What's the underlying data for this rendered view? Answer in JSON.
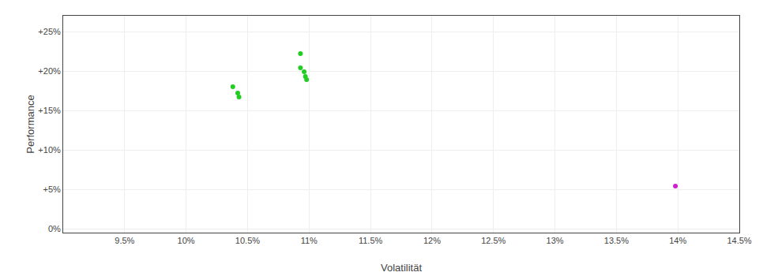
{
  "chart_data": {
    "type": "scatter",
    "xlabel": "Volatilität",
    "ylabel": "Performance",
    "xlim": [
      0.09,
      0.145
    ],
    "ylim": [
      -0.005,
      0.27
    ],
    "xticks": [
      {
        "value": 0.095,
        "label": "9.5%"
      },
      {
        "value": 0.1,
        "label": "10%"
      },
      {
        "value": 0.105,
        "label": "10.5%"
      },
      {
        "value": 0.11,
        "label": "11%"
      },
      {
        "value": 0.115,
        "label": "11.5%"
      },
      {
        "value": 0.12,
        "label": "12%"
      },
      {
        "value": 0.125,
        "label": "12.5%"
      },
      {
        "value": 0.13,
        "label": "13%"
      },
      {
        "value": 0.135,
        "label": "13.5%"
      },
      {
        "value": 0.14,
        "label": "14%"
      },
      {
        "value": 0.145,
        "label": "14.5%"
      }
    ],
    "yticks": [
      {
        "value": 0.0,
        "label": "0%"
      },
      {
        "value": 0.05,
        "label": "+5%"
      },
      {
        "value": 0.1,
        "label": "+10%"
      },
      {
        "value": 0.15,
        "label": "+15%"
      },
      {
        "value": 0.2,
        "label": "+20%"
      },
      {
        "value": 0.25,
        "label": "+25%"
      }
    ],
    "grid": true,
    "series": [
      {
        "color": "#22cc22",
        "x": [
          0.1093,
          0.1093,
          0.1096,
          0.1097,
          0.1098,
          0.1038,
          0.1042,
          0.1043
        ],
        "values": [
          0.222,
          0.204,
          0.199,
          0.193,
          0.189,
          0.18,
          0.172,
          0.167
        ]
      },
      {
        "color": "#cc22cc",
        "x": [
          0.1398
        ],
        "values": [
          0.054
        ]
      }
    ]
  }
}
